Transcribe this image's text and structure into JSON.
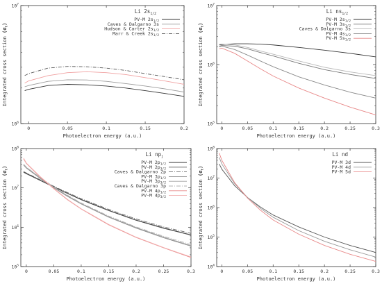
{
  "chart_data": [
    {
      "type": "line",
      "title": {
        "main": "Li 2s",
        "sub": "1/2"
      },
      "xlabel": "Photoelectron energy (a.u.)",
      "ylabel": {
        "main": "Integrated cross section ",
        "unit": "(σ",
        "unit_sub": "t",
        "unit_close": ")"
      },
      "xlim": [
        -0.01,
        0.2
      ],
      "ylim": [
        1000000,
        10000000
      ],
      "yscale": "log",
      "xticks": [
        {
          "v": 0,
          "label": "0"
        },
        {
          "v": 0.05,
          "label": "0.05"
        },
        {
          "v": 0.1,
          "label": "0.1"
        },
        {
          "v": 0.15,
          "label": "0.15"
        },
        {
          "v": 0.2,
          "label": "0.2"
        }
      ],
      "yticks": [
        {
          "v": 1000000,
          "base": "10",
          "exp": "6"
        },
        {
          "v": 10000000,
          "base": "10",
          "exp": "7"
        }
      ],
      "legend_position": "top-right",
      "series": [
        {
          "name": "PV-M 2s",
          "name_sub": "1/2",
          "color": "#333333",
          "dash": "",
          "x": [
            -0.005,
            0,
            0.025,
            0.05,
            0.075,
            0.1,
            0.125,
            0.15,
            0.175,
            0.2
          ],
          "y": [
            1900000,
            1950000,
            2100000,
            2150000,
            2130000,
            2080000,
            2000000,
            1900000,
            1800000,
            1700000
          ]
        },
        {
          "name": "Caves & Dalgarno 3s",
          "name_sub": "",
          "color": "#9a9a9a",
          "dash": "",
          "x": [
            -0.005,
            0,
            0.025,
            0.05,
            0.075,
            0.1,
            0.125,
            0.15,
            0.175,
            0.2
          ],
          "y": [
            2050000,
            2100000,
            2280000,
            2350000,
            2340000,
            2280000,
            2180000,
            2080000,
            1970000,
            1850000
          ]
        },
        {
          "name": "Hudson & Carter 2s",
          "name_sub": "1/2",
          "color": "#f0a0a0",
          "dash": "",
          "x": [
            -0.005,
            0,
            0.025,
            0.05,
            0.075,
            0.1,
            0.125,
            0.15,
            0.175,
            0.2
          ],
          "y": [
            2200000,
            2300000,
            2550000,
            2700000,
            2750000,
            2700000,
            2600000,
            2450000,
            2300000,
            2150000
          ]
        },
        {
          "name": "Marr & Creek 2s",
          "name_sub": "1/2",
          "color": "#555555",
          "dash": "5,2,1,2",
          "x": [
            -0.005,
            0,
            0.025,
            0.05,
            0.075,
            0.1,
            0.125,
            0.15,
            0.175,
            0.2
          ],
          "y": [
            2550000,
            2650000,
            2950000,
            3050000,
            3030000,
            2950000,
            2820000,
            2650000,
            2500000,
            2350000
          ]
        }
      ]
    },
    {
      "type": "line",
      "title": {
        "main": "Li ns",
        "sub": "1/2"
      },
      "xlabel": "Photoelectron energy (a.u.)",
      "ylabel": {
        "main": "Integrated cross section ",
        "unit": "(σ",
        "unit_sub": "t",
        "unit_close": ")"
      },
      "xlim": [
        -0.01,
        0.3
      ],
      "ylim": [
        100000,
        10000000
      ],
      "yscale": "log",
      "xticks": [
        {
          "v": 0,
          "label": "0"
        },
        {
          "v": 0.05,
          "label": "0.05"
        },
        {
          "v": 0.1,
          "label": "0.1"
        },
        {
          "v": 0.15,
          "label": "0.15"
        },
        {
          "v": 0.2,
          "label": "0.2"
        },
        {
          "v": 0.25,
          "label": "0.25"
        },
        {
          "v": 0.3,
          "label": "0.3"
        }
      ],
      "yticks": [
        {
          "v": 100000,
          "base": "10",
          "exp": "5"
        },
        {
          "v": 1000000,
          "base": "10",
          "exp": "6"
        },
        {
          "v": 10000000,
          "base": "10",
          "exp": "7"
        }
      ],
      "legend_position": "top-right",
      "series": [
        {
          "name": "PV-M 2s",
          "name_sub": "1/2",
          "color": "#333333",
          "dash": "",
          "x": [
            -0.005,
            0,
            0.025,
            0.05,
            0.075,
            0.1,
            0.15,
            0.2,
            0.25,
            0.3
          ],
          "y": [
            2150000,
            2180000,
            2250000,
            2250000,
            2220000,
            2150000,
            1950000,
            1750000,
            1550000,
            1350000
          ]
        },
        {
          "name": "PV-M 3s",
          "name_sub": "1/2",
          "color": "#777777",
          "dash": "",
          "x": [
            -0.005,
            0,
            0.025,
            0.05,
            0.075,
            0.1,
            0.15,
            0.2,
            0.25,
            0.3
          ],
          "y": [
            2050000,
            2100000,
            2050000,
            1850000,
            1600000,
            1400000,
            1050000,
            820000,
            680000,
            580000
          ]
        },
        {
          "name": "Caves & Dalgarno 3s",
          "name_sub": "",
          "color": "#b8b8b8",
          "dash": "",
          "x": [
            -0.005,
            0,
            0.025,
            0.05,
            0.075,
            0.1,
            0.15,
            0.2,
            0.25,
            0.3
          ],
          "y": [
            2200000,
            2230000,
            2150000,
            1950000,
            1700000,
            1500000,
            1150000,
            900000,
            750000,
            650000
          ]
        },
        {
          "name": "PV-M 4s",
          "name_sub": "1/2",
          "color": "#8a8a8a",
          "dash": "",
          "x": [
            -0.005,
            0,
            0.025,
            0.05,
            0.075,
            0.1,
            0.15,
            0.2,
            0.25,
            0.3
          ],
          "y": [
            2000000,
            2050000,
            1800000,
            1450000,
            1150000,
            920000,
            620000,
            450000,
            340000,
            270000
          ]
        },
        {
          "name": "PV-M 5s",
          "name_sub": "1/2",
          "color": "#e88888",
          "dash": "",
          "x": [
            -0.005,
            0,
            0.025,
            0.05,
            0.075,
            0.1,
            0.15,
            0.2,
            0.25,
            0.3
          ],
          "y": [
            1850000,
            1900000,
            1550000,
            1150000,
            850000,
            640000,
            400000,
            270000,
            190000,
            140000
          ]
        }
      ]
    },
    {
      "type": "line",
      "title": {
        "main": "Li np",
        "sub": "j"
      },
      "xlabel": "Photoelectron energy (a.u.)",
      "ylabel": {
        "main": "Integrated cross section ",
        "unit": "(σ",
        "unit_sub": "t",
        "unit_close": ")"
      },
      "xlim": [
        -0.01,
        0.3
      ],
      "ylim": [
        100000,
        100000000
      ],
      "yscale": "log",
      "xticks": [
        {
          "v": 0,
          "label": "0"
        },
        {
          "v": 0.05,
          "label": "0.05"
        },
        {
          "v": 0.1,
          "label": "0.1"
        },
        {
          "v": 0.15,
          "label": "0.15"
        },
        {
          "v": 0.2,
          "label": "0.2"
        },
        {
          "v": 0.25,
          "label": "0.25"
        },
        {
          "v": 0.3,
          "label": "0.3"
        }
      ],
      "yticks": [
        {
          "v": 100000,
          "base": "10",
          "exp": "5"
        },
        {
          "v": 1000000,
          "base": "10",
          "exp": "6"
        },
        {
          "v": 10000000,
          "base": "10",
          "exp": "7"
        },
        {
          "v": 100000000,
          "base": "10",
          "exp": "8"
        }
      ],
      "legend_position": "top-right",
      "series": [
        {
          "name": "PV-M 2p",
          "name_sub": "1/2",
          "color": "#333333",
          "dash": "",
          "x": [
            -0.005,
            0,
            0.025,
            0.05,
            0.075,
            0.1,
            0.15,
            0.2,
            0.25,
            0.3
          ],
          "y": [
            25000000,
            23000000,
            15500000,
            10500000,
            7200000,
            5000000,
            2650000,
            1500000,
            940000,
            630000
          ]
        },
        {
          "name": "PV-M 2p",
          "name_sub": "3/2",
          "color": "#555555",
          "dash": "",
          "x": [
            -0.005,
            0,
            0.025,
            0.05,
            0.075,
            0.1,
            0.15,
            0.2,
            0.25,
            0.3
          ],
          "y": [
            25500000,
            23500000,
            15800000,
            10700000,
            7300000,
            5100000,
            2700000,
            1530000,
            960000,
            640000
          ]
        },
        {
          "name": "Caves & Dalgarno 2p",
          "name_sub": "",
          "color": "#666666",
          "dash": "6,2,1,2",
          "x": [
            -0.005,
            0,
            0.025,
            0.05,
            0.075,
            0.1,
            0.15,
            0.2,
            0.25,
            0.3
          ],
          "y": [
            26000000,
            24000000,
            16200000,
            11000000,
            7600000,
            5300000,
            2850000,
            1620000,
            1020000,
            700000
          ]
        },
        {
          "name": "PV-M 3p",
          "name_sub": "1/2",
          "color": "#8a8a8a",
          "dash": "",
          "x": [
            -0.005,
            0,
            0.025,
            0.05,
            0.075,
            0.1,
            0.15,
            0.2,
            0.25,
            0.3
          ],
          "y": [
            38000000,
            32000000,
            17500000,
            10000000,
            6100000,
            3900000,
            1800000,
            950000,
            540000,
            330000
          ]
        },
        {
          "name": "PV-M 3p",
          "name_sub": "3/2",
          "color": "#a0a0a0",
          "dash": "",
          "x": [
            -0.005,
            0,
            0.025,
            0.05,
            0.075,
            0.1,
            0.15,
            0.2,
            0.25,
            0.3
          ],
          "y": [
            39000000,
            33000000,
            18000000,
            10300000,
            6300000,
            4000000,
            1850000,
            980000,
            560000,
            340000
          ]
        },
        {
          "name": "Caves & Dalgarno 3p",
          "name_sub": "",
          "color": "#b0b0b0",
          "dash": "6,2,1,2",
          "x": [
            -0.005,
            0,
            0.025,
            0.05,
            0.075,
            0.1,
            0.15,
            0.2,
            0.25,
            0.3
          ],
          "y": [
            40000000,
            34000000,
            18500000,
            10600000,
            6500000,
            4150000,
            1920000,
            1020000,
            590000,
            360000
          ]
        },
        {
          "name": "PV-M 4p",
          "name_sub": "1/2",
          "color": "#e88888",
          "dash": "",
          "x": [
            -0.005,
            0,
            0.025,
            0.05,
            0.075,
            0.1,
            0.15,
            0.2,
            0.25,
            0.3
          ],
          "y": [
            55000000,
            42000000,
            19000000,
            9500000,
            5000000,
            2900000,
            1150000,
            550000,
            300000,
            170000
          ]
        },
        {
          "name": "PV-M 4p",
          "name_sub": "3/2",
          "color": "#f2b0b0",
          "dash": "",
          "x": [
            -0.005,
            0,
            0.025,
            0.05,
            0.075,
            0.1,
            0.15,
            0.2,
            0.25,
            0.3
          ],
          "y": [
            57000000,
            43000000,
            19500000,
            9700000,
            5100000,
            2950000,
            1180000,
            560000,
            305000,
            175000
          ]
        }
      ]
    },
    {
      "type": "line",
      "title": {
        "main": "Li nd",
        "sub": ""
      },
      "xlabel": "Photoelectron energy (a.u.)",
      "ylabel": {
        "main": "Integrated cross section ",
        "unit": "(σ",
        "unit_sub": "t",
        "unit_close": ")"
      },
      "xlim": [
        -0.01,
        0.3
      ],
      "ylim": [
        10000,
        100000000
      ],
      "yscale": "log",
      "xticks": [
        {
          "v": 0,
          "label": "0"
        },
        {
          "v": 0.05,
          "label": "0.05"
        },
        {
          "v": 0.1,
          "label": "0.1"
        },
        {
          "v": 0.15,
          "label": "0.15"
        },
        {
          "v": 0.2,
          "label": "0.2"
        },
        {
          "v": 0.25,
          "label": "0.25"
        },
        {
          "v": 0.3,
          "label": "0.3"
        }
      ],
      "yticks": [
        {
          "v": 10000,
          "base": "10",
          "exp": "4"
        },
        {
          "v": 100000,
          "base": "10",
          "exp": "5"
        },
        {
          "v": 1000000,
          "base": "10",
          "exp": "6"
        },
        {
          "v": 10000000,
          "base": "10",
          "exp": "7"
        },
        {
          "v": 100000000,
          "base": "10",
          "exp": "8"
        }
      ],
      "legend_position": "top-right",
      "series": [
        {
          "name": "PV-M 3d",
          "name_sub": "",
          "color": "#555555",
          "dash": "",
          "x": [
            -0.005,
            0,
            0.025,
            0.05,
            0.075,
            0.1,
            0.15,
            0.2,
            0.25,
            0.3
          ],
          "y": [
            30000000,
            20000000,
            5500000,
            2200000,
            1050000,
            560000,
            220000,
            100000,
            52000,
            30000
          ]
        },
        {
          "name": "PV-M 4d",
          "name_sub": "",
          "color": "#999999",
          "dash": "",
          "x": [
            -0.005,
            0,
            0.025,
            0.05,
            0.075,
            0.1,
            0.15,
            0.2,
            0.25,
            0.3
          ],
          "y": [
            50000000,
            30000000,
            6500000,
            2200000,
            950000,
            470000,
            165000,
            72000,
            37000,
            21000
          ]
        },
        {
          "name": "PV-M 5d",
          "name_sub": "",
          "color": "#e88888",
          "dash": "",
          "x": [
            -0.005,
            0,
            0.025,
            0.05,
            0.075,
            0.1,
            0.15,
            0.2,
            0.25,
            0.3
          ],
          "y": [
            70000000,
            40000000,
            7000000,
            2100000,
            820000,
            380000,
            125000,
            52000,
            26000,
            15000
          ]
        }
      ]
    }
  ]
}
